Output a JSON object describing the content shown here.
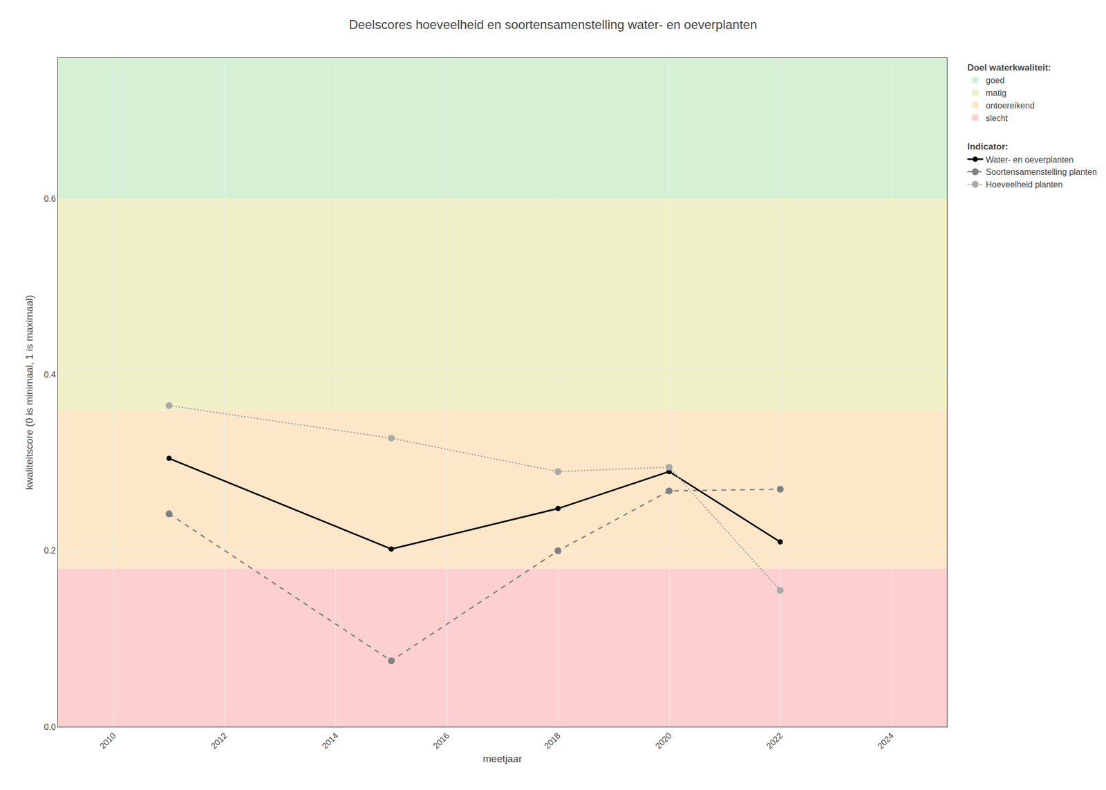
{
  "chart_data": {
    "type": "line",
    "title": "Deelscores hoeveelheid en soortensamenstelling water- en oeverplanten",
    "x_label": "meetjaar",
    "y_label": "kwaliteitscore (0 is minimaal, 1 is maximaal)",
    "xlim": [
      2009,
      2025
    ],
    "ylim": [
      0.0,
      0.76
    ],
    "xticks": [
      2010,
      2012,
      2014,
      2016,
      2018,
      2020,
      2022,
      2024
    ],
    "yticks": [
      {
        "value": 0.0,
        "label": "0.0"
      },
      0.2,
      0.4,
      0.6
    ],
    "grid": true,
    "bands_title": "Doel waterkwaliteit:",
    "bands": [
      {
        "name": "goed",
        "color": "#d5f0d5",
        "range": [
          0.6,
          0.76
        ]
      },
      {
        "name": "matig",
        "color": "#f0f0c8",
        "range": [
          0.36,
          0.6
        ]
      },
      {
        "name": "ontoereikend",
        "color": "#fce8c8",
        "range": [
          0.18,
          0.36
        ]
      },
      {
        "name": "slecht",
        "color": "#fcd0d0",
        "range": [
          0.0,
          0.18
        ]
      }
    ],
    "series_title": "Indicator:",
    "x": [
      2011,
      2015,
      2018,
      2020,
      2022
    ],
    "series": [
      {
        "name": "Water- en oeverplanten",
        "color": "#000000",
        "line_style": "solid",
        "marker": "circle",
        "values": [
          0.305,
          0.202,
          0.248,
          0.29,
          0.21
        ]
      },
      {
        "name": "Soortensamenstelling planten",
        "color": "#808080",
        "line_style": "dashed",
        "marker": "circle",
        "values": [
          0.242,
          0.075,
          0.2,
          0.268,
          0.27
        ]
      },
      {
        "name": "Hoeveelheid planten",
        "color": "#aaaaaa",
        "line_style": "dotted",
        "marker": "circle",
        "values": [
          0.365,
          0.328,
          0.29,
          0.295,
          0.155
        ]
      }
    ]
  }
}
